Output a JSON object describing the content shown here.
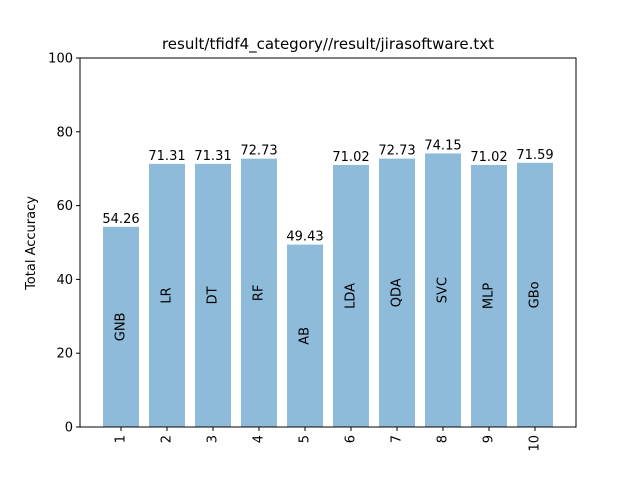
{
  "chart_data": {
    "type": "bar",
    "title": "result/tfidf4_category//result/jirasoftware.txt",
    "xlabel": "",
    "ylabel": "Total Accuracy",
    "ylim": [
      0,
      100
    ],
    "yticks": [
      0,
      20,
      40,
      60,
      80,
      100
    ],
    "categories": [
      "1",
      "2",
      "3",
      "4",
      "5",
      "6",
      "7",
      "8",
      "9",
      "10"
    ],
    "values": [
      54.26,
      71.31,
      71.31,
      72.73,
      49.43,
      71.02,
      72.73,
      74.15,
      71.02,
      71.59
    ],
    "value_labels": [
      "54.26",
      "71.31",
      "71.31",
      "72.73",
      "49.43",
      "71.02",
      "72.73",
      "74.15",
      "71.02",
      "71.59"
    ],
    "bar_names": [
      "GNB",
      "LR",
      "DT",
      "RF",
      "AB",
      "LDA",
      "QDA",
      "SVC",
      "MLP",
      "GBo"
    ],
    "bar_color": "#8fbbda",
    "grid": false,
    "legend": "none"
  }
}
